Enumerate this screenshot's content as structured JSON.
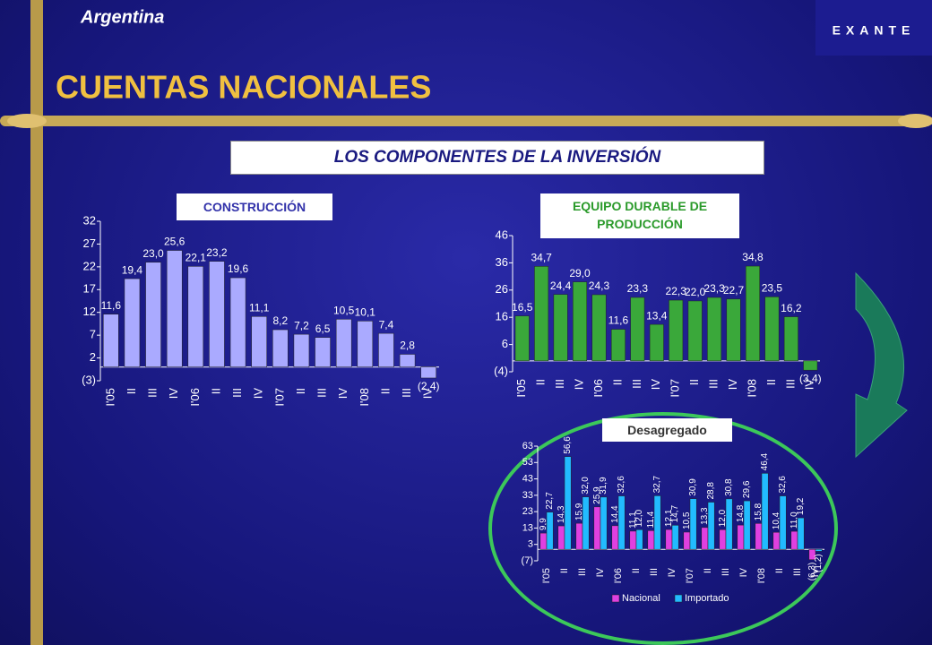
{
  "header": {
    "country": "Argentina",
    "title": "CUENTAS NACIONALES",
    "logo": "EXANTE",
    "subtitle": "LOS COMPONENTES DE LA INVERSIÓN"
  },
  "chart_data": [
    {
      "type": "bar",
      "title": "CONSTRUCCIÓN",
      "color": "#aaaaff",
      "categories": [
        "I'05",
        "II",
        "III",
        "IV",
        "I'06",
        "II",
        "III",
        "IV",
        "I'07",
        "II",
        "III",
        "IV",
        "I'08",
        "II",
        "III",
        "IV"
      ],
      "values": [
        11.6,
        19.4,
        23.0,
        25.6,
        22.1,
        23.2,
        19.6,
        11.1,
        8.2,
        7.2,
        6.5,
        10.5,
        10.1,
        7.4,
        2.8,
        -2.4
      ],
      "value_labels": [
        "11,6",
        "19,4",
        "23,0",
        "25,6",
        "22,1",
        "23,2",
        "19,6",
        "11,1",
        "8,2",
        "7,2",
        "6,5",
        "10,5",
        "10,1",
        "7,4",
        "2,8",
        "(2,4)"
      ],
      "ylim": [
        -3,
        32
      ],
      "yticks": [
        {
          "value": -3,
          "label": "(3)"
        },
        2,
        7,
        12,
        17,
        22,
        27,
        32
      ]
    },
    {
      "type": "bar",
      "title": "EQUIPO DURABLE DE PRODUCCIÓN",
      "color": "#3aa83a",
      "categories": [
        "I'05",
        "II",
        "III",
        "IV",
        "I'06",
        "II",
        "III",
        "IV",
        "I'07",
        "II",
        "III",
        "IV",
        "I'08",
        "II",
        "III",
        "IV"
      ],
      "values": [
        16.5,
        34.7,
        24.4,
        29.0,
        24.3,
        11.6,
        23.3,
        13.4,
        22.3,
        22.0,
        23.3,
        22.7,
        34.8,
        23.5,
        16.2,
        -3.4
      ],
      "value_labels": [
        "16,5",
        "34,7",
        "24,4",
        "29,0",
        "24,3",
        "11,6",
        "23,3",
        "13,4",
        "22,3",
        "22,0",
        "23,3",
        "22,7",
        "34,8",
        "23,5",
        "16,2",
        "(3,4)"
      ],
      "ylim": [
        -4,
        46
      ],
      "yticks": [
        {
          "value": -4,
          "label": "(4)"
        },
        6,
        16,
        26,
        36,
        46
      ]
    },
    {
      "type": "grouped-bar",
      "title": "Desagregado",
      "categories": [
        "I'05",
        "II",
        "III",
        "IV",
        "I'06",
        "II",
        "III",
        "IV",
        "I'07",
        "II",
        "III",
        "IV",
        "I'08",
        "II",
        "III",
        "IV"
      ],
      "series": [
        {
          "name": "Nacional",
          "color": "#e040e0",
          "values": [
            9.9,
            14.3,
            15.9,
            25.9,
            14.4,
            11.1,
            11.4,
            12.1,
            10.5,
            13.3,
            12.0,
            14.8,
            15.8,
            10.4,
            11.0,
            -6.3
          ],
          "value_labels": [
            "9,9",
            "14,3",
            "15,9",
            "25,9",
            "14,4",
            "11,1",
            "11,4",
            "12,1",
            "10,5",
            "13,3",
            "12,0",
            "14,8",
            "15,8",
            "10,4",
            "11,0",
            "(6,3)"
          ]
        },
        {
          "name": "Importado",
          "color": "#22bbff",
          "values": [
            22.7,
            56.6,
            32.0,
            31.9,
            32.6,
            12.0,
            32.7,
            14.7,
            30.9,
            28.8,
            30.8,
            29.6,
            46.4,
            32.6,
            19.2,
            -1.2
          ],
          "value_labels": [
            "22,7",
            "56,6",
            "32,0",
            "31,9",
            "32,6",
            "12,0",
            "32,7",
            "14,7",
            "30,9",
            "28,8",
            "30,8",
            "29,6",
            "46,4",
            "32,6",
            "19,2",
            "(1,2)"
          ]
        }
      ],
      "ylim": [
        -7,
        63
      ],
      "yticks": [
        {
          "value": -7,
          "label": "(7)"
        },
        3,
        13,
        23,
        33,
        43,
        53,
        63
      ]
    }
  ]
}
